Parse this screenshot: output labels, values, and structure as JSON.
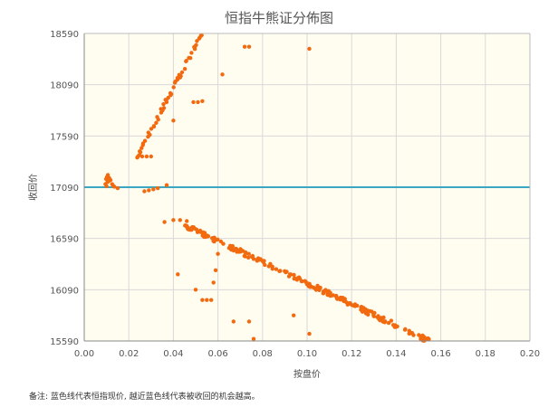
{
  "chart_data": {
    "type": "scatter",
    "title": "恒指牛熊证分佈图",
    "xlabel": "按盘价",
    "ylabel": "收回价",
    "xlim": [
      0.0,
      0.2
    ],
    "ylim": [
      15590,
      18590
    ],
    "x_ticks": [
      "0.00",
      "0.02",
      "0.04",
      "0.06",
      "0.08",
      "0.10",
      "0.12",
      "0.14",
      "0.16",
      "0.18",
      "0.20"
    ],
    "y_ticks": [
      "15590",
      "16090",
      "16590",
      "17090",
      "17590",
      "18090",
      "18590"
    ],
    "grid": true,
    "reference_line": {
      "y": 17090,
      "color": "#3aa6c2"
    },
    "marker_color": "#f26a0f",
    "plot_background": "#fffcf0",
    "note": "备注:   蓝色线代表恒指现价, 越近蓝色线代表被收回的机会越高。",
    "bull_series": {
      "y_at_x_0_02": 17230,
      "slope_per_unit": 41500,
      "spread": 30,
      "x_start": 0.023,
      "x_end": 0.155,
      "count": 270
    },
    "bear_series": {
      "y_at_x_0_045": 16720,
      "slope_per_unit": -10300,
      "spread": 25,
      "x_start": 0.045,
      "x_end": 0.165,
      "count": 260
    },
    "outliers": [
      [
        0.0095,
        17120
      ],
      [
        0.0098,
        17170
      ],
      [
        0.01,
        17100
      ],
      [
        0.0102,
        17190
      ],
      [
        0.0104,
        17140
      ],
      [
        0.0106,
        17210
      ],
      [
        0.011,
        17150
      ],
      [
        0.0112,
        17180
      ],
      [
        0.0118,
        17160
      ],
      [
        0.0125,
        17120
      ],
      [
        0.013,
        17105
      ],
      [
        0.0135,
        17095
      ],
      [
        0.015,
        17080
      ],
      [
        0.026,
        17390
      ],
      [
        0.028,
        17390
      ],
      [
        0.03,
        17390
      ],
      [
        0.027,
        17050
      ],
      [
        0.029,
        17060
      ],
      [
        0.031,
        17070
      ],
      [
        0.033,
        17080
      ],
      [
        0.037,
        17110
      ],
      [
        0.036,
        16750
      ],
      [
        0.04,
        16770
      ],
      [
        0.043,
        16770
      ],
      [
        0.046,
        16760
      ],
      [
        0.04,
        17740
      ],
      [
        0.049,
        17920
      ],
      [
        0.051,
        17920
      ],
      [
        0.053,
        17930
      ],
      [
        0.072,
        18460
      ],
      [
        0.074,
        18460
      ],
      [
        0.062,
        18190
      ],
      [
        0.101,
        18440
      ],
      [
        0.042,
        16240
      ],
      [
        0.05,
        16090
      ],
      [
        0.053,
        15990
      ],
      [
        0.055,
        15990
      ],
      [
        0.057,
        15990
      ],
      [
        0.058,
        16160
      ],
      [
        0.059,
        16280
      ],
      [
        0.06,
        16440
      ],
      [
        0.067,
        15780
      ],
      [
        0.074,
        15780
      ],
      [
        0.076,
        15610
      ],
      [
        0.094,
        15840
      ],
      [
        0.101,
        15660
      ]
    ]
  }
}
